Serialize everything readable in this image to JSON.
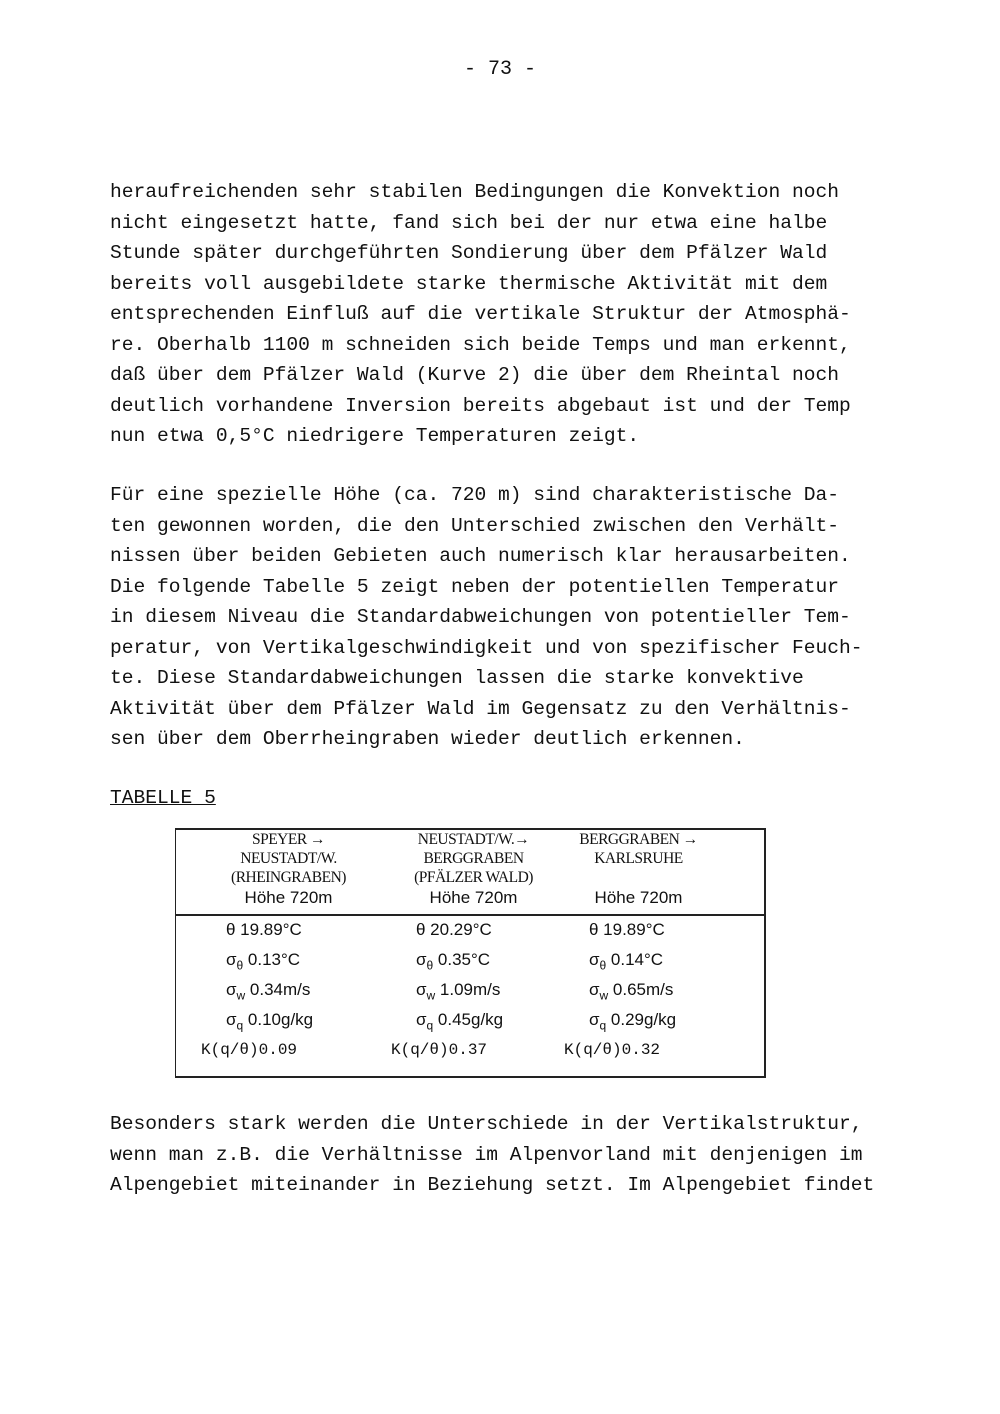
{
  "page_number": "- 73 -",
  "paragraph1": [
    "heraufreichenden sehr stabilen Bedingungen die Konvektion noch",
    "nicht eingesetzt hatte, fand sich bei der nur etwa eine halbe",
    "Stunde später durchgeführten Sondierung über dem Pfälzer Wald",
    "bereits voll ausgebildete starke thermische Aktivität mit dem",
    "entsprechenden Einfluß auf die vertikale Struktur der Atmosphä-",
    "re. Oberhalb 1100 m schneiden sich beide Temps und man erkennt,",
    "daß über dem Pfälzer Wald (Kurve 2) die über dem Rheintal noch",
    "deutlich vorhandene Inversion bereits abgebaut ist und der Temp",
    "nun etwa 0,5°C niedrigere Temperaturen zeigt."
  ],
  "paragraph2": [
    "Für eine spezielle Höhe (ca. 720 m) sind charakteristische Da-",
    "ten gewonnen worden, die den Unterschied zwischen den Verhält-",
    "nissen über beiden Gebieten auch numerisch klar herausarbeiten.",
    "Die folgende Tabelle 5 zeigt neben der potentiellen Temperatur",
    "in diesem Niveau die Standardabweichungen von potentieller Tem-",
    "peratur, von Vertikalgeschwindigkeit und von spezifischer Feuch-",
    "te. Diese Standardabweichungen lassen die starke konvektive",
    "Aktivität über dem Pfälzer Wald im Gegensatz zu den Verhältnis-",
    "sen über dem Oberrheingraben wieder deutlich erkennen."
  ],
  "table_caption": "TABELLE 5",
  "table": {
    "columns": [
      {
        "header": [
          "SPEYER →",
          "NEUSTADT/W.",
          "(RHEINGRABEN)"
        ],
        "height": "Höhe 720m",
        "theta": "θ 19.89°C",
        "sigma_theta": "0.13°C",
        "sigma_w": "0.34m/s",
        "sigma_q": "0.10g/kg",
        "k": "K(q/θ)0.09"
      },
      {
        "header": [
          "NEUSTADT/W.→",
          "BERGGRABEN",
          "(PFÄLZER WALD)"
        ],
        "height": "Höhe 720m",
        "theta": "θ 20.29°C",
        "sigma_theta": "0.35°C",
        "sigma_w": "1.09m/s",
        "sigma_q": "0.45g/kg",
        "k": "K(q/θ)0.37"
      },
      {
        "header": [
          "BERGGRABEN →",
          "KARLSRUHE",
          ""
        ],
        "height": "Höhe 720m",
        "theta": "θ 19.89°C",
        "sigma_theta": "0.14°C",
        "sigma_w": "0.65m/s",
        "sigma_q": "0.29g/kg",
        "k": "K(q/θ)0.32"
      }
    ],
    "sigma": "σ",
    "sub_theta": "θ",
    "sub_w": "w",
    "sub_q": "q"
  },
  "paragraph3": [
    "Besonders stark werden die Unterschiede in der Vertikalstruktur,",
    "wenn man z.B. die Verhältnisse im Alpenvorland mit denjenigen im",
    "Alpengebiet miteinander in Beziehung setzt. Im Alpengebiet findet"
  ]
}
